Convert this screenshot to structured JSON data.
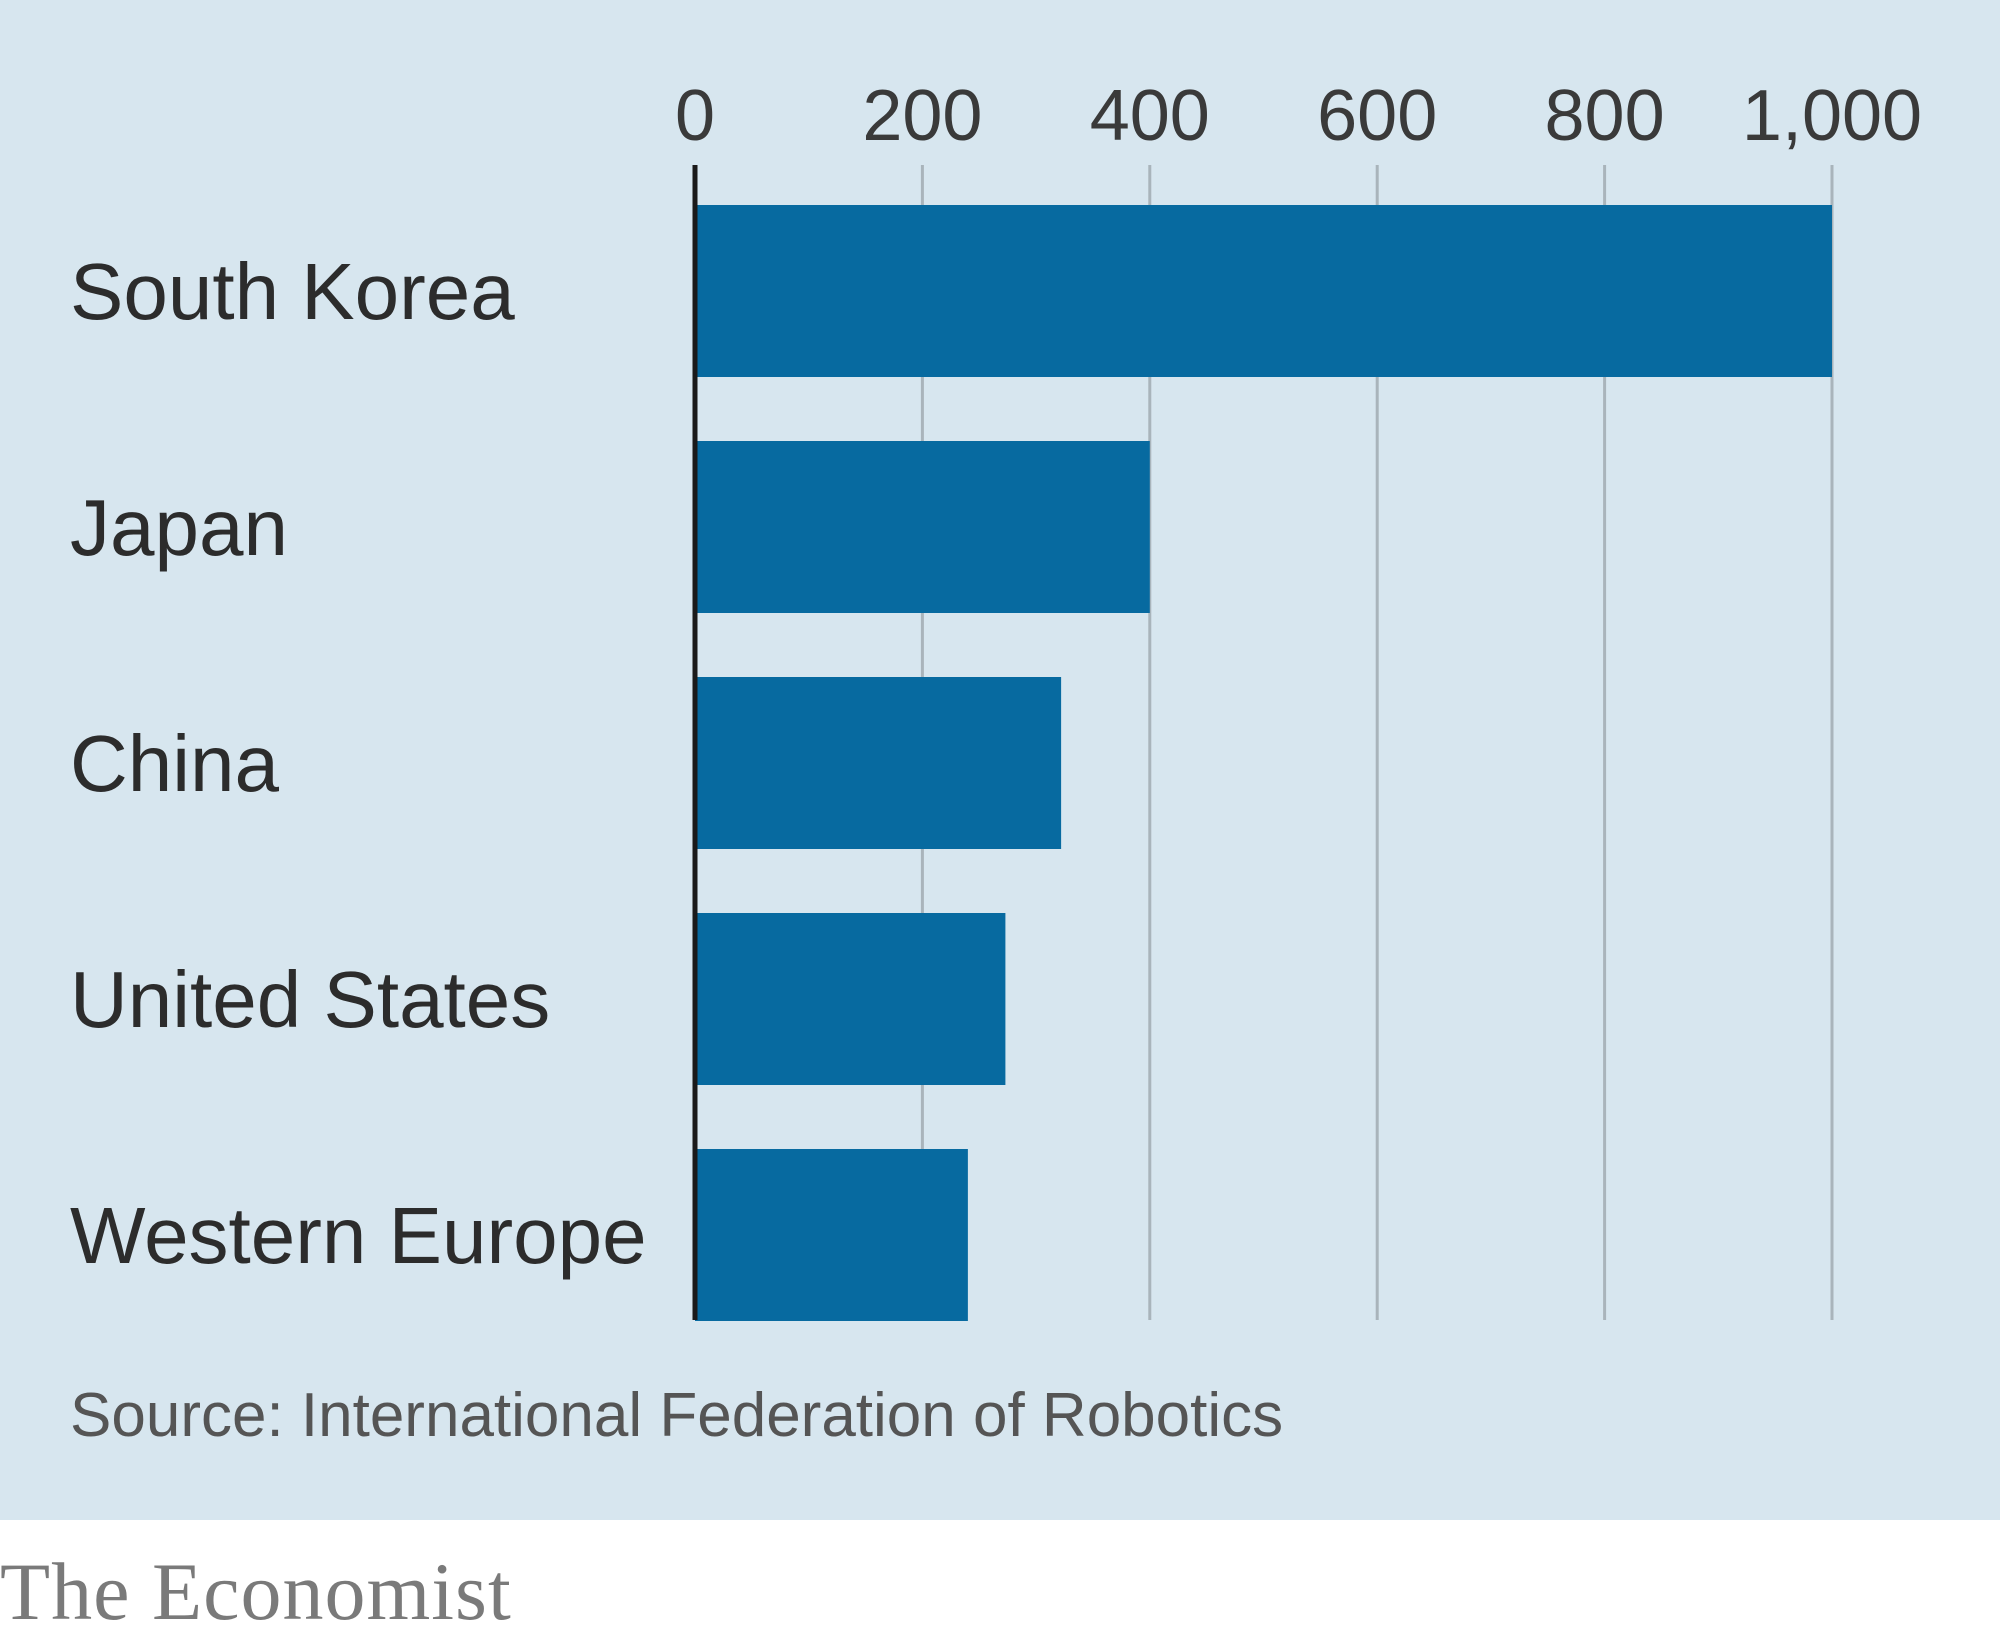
{
  "chart_data": {
    "type": "bar",
    "orientation": "horizontal",
    "categories": [
      "South Korea",
      "Japan",
      "China",
      "United States",
      "Western Europe"
    ],
    "values": [
      1000,
      400,
      322,
      273,
      240
    ],
    "xlim": [
      0,
      1000
    ],
    "xticks": [
      0,
      200,
      400,
      600,
      800,
      1000
    ],
    "xtick_labels": [
      "0",
      "200",
      "400",
      "600",
      "800",
      "1,000"
    ],
    "xaxis_position": "top",
    "grid": true,
    "title": "",
    "xlabel": "",
    "ylabel": "",
    "colors": {
      "bar": "#076aa0",
      "background": "#d7e6ef",
      "gridline": "#a9b4bb",
      "baseline": "#1a1a1a"
    }
  },
  "source": "Source: International Federation of Robotics",
  "brand": "The Economist"
}
